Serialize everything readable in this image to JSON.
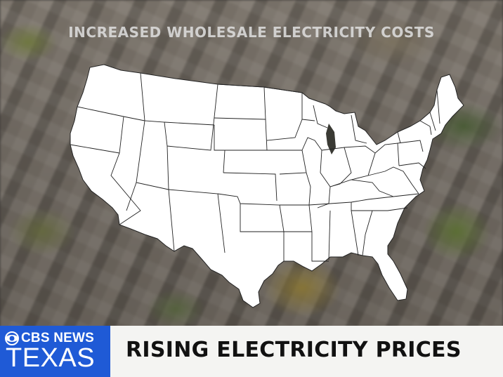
{
  "headline": "INCREASED WHOLESALE ELECTRICITY COSTS",
  "branding": {
    "network": "CBS NEWS",
    "station": "TEXAS",
    "logo_icon": "cbs-eye-icon",
    "brand_color": "#1f5ad6"
  },
  "banner": {
    "title": "RISING ELECTRICITY PRICES"
  },
  "map": {
    "subject": "united-states-states-map",
    "fill_color": "#ffffff",
    "border_color": "#222222"
  }
}
